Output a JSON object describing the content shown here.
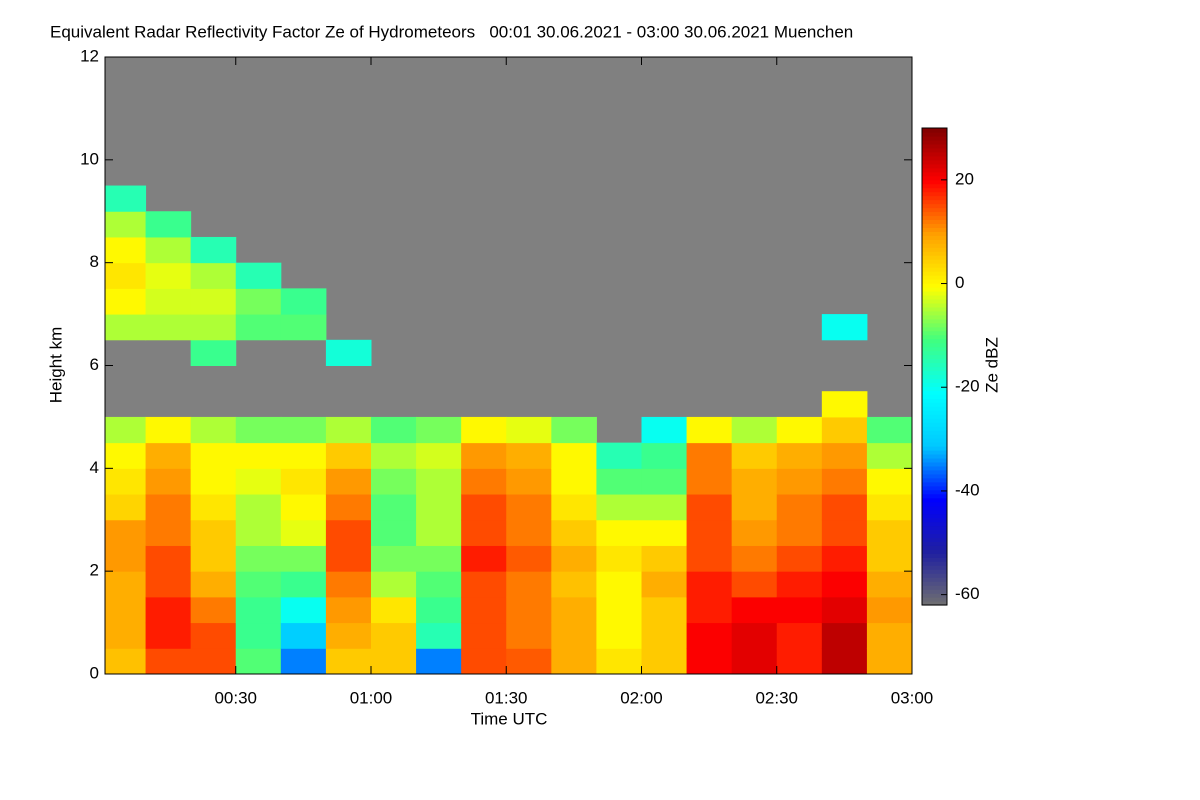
{
  "chart_data": {
    "type": "heatmap",
    "title": "Equivalent Radar Reflectivity Factor Ze of Hydrometeors   00:01 30.06.2021 - 03:00 30.06.2021 Muenchen",
    "x_label": "Time UTC",
    "y_label": "Height km",
    "colorbar_label": "Ze dBZ",
    "xlim": [
      1,
      180
    ],
    "xticks": [
      {
        "value": 30,
        "label": "00:30"
      },
      {
        "value": 60,
        "label": "01:00"
      },
      {
        "value": 90,
        "label": "01:30"
      },
      {
        "value": 120,
        "label": "02:00"
      },
      {
        "value": 150,
        "label": "02:30"
      },
      {
        "value": 180,
        "label": "03:00"
      }
    ],
    "ylim": [
      0,
      12
    ],
    "yticks": [
      0,
      2,
      4,
      6,
      8,
      10,
      12
    ],
    "clim": [
      -62,
      30
    ],
    "cticks": [
      -60,
      -40,
      -20,
      0,
      20
    ],
    "colormap": [
      "#707070",
      "#2020a0",
      "#0000ff",
      "#00c8ff",
      "#00ffff",
      "#40ff80",
      "#ffff00",
      "#ffa000",
      "#ff0000",
      "#800000"
    ],
    "background": "#808080",
    "x": [
      5,
      15,
      25,
      35,
      45,
      55,
      65,
      75,
      85,
      95,
      105,
      115,
      125,
      135,
      145,
      155,
      165,
      175
    ],
    "y": [
      0.25,
      0.75,
      1.25,
      1.75,
      2.25,
      2.75,
      3.25,
      3.75,
      4.25,
      4.75,
      5.25,
      5.75,
      6.25,
      6.75,
      7.25,
      7.75,
      8.25,
      8.75,
      9.25
    ],
    "z": [
      [
        6,
        8,
        8,
        8,
        10,
        10,
        4,
        2,
        0,
        -5,
        null,
        null,
        null,
        -5,
        0,
        2,
        0,
        -5,
        -15
      ],
      [
        15,
        18,
        18,
        15,
        15,
        12,
        12,
        10,
        8,
        0,
        null,
        null,
        null,
        -5,
        -3,
        -2,
        -5,
        -12,
        null
      ],
      [
        15,
        15,
        12,
        8,
        5,
        5,
        2,
        0,
        0,
        -5,
        null,
        null,
        -12,
        -5,
        -3,
        -5,
        -15,
        null,
        null
      ],
      [
        -10,
        -12,
        -12,
        -10,
        -8,
        -5,
        -5,
        -2,
        0,
        -8,
        null,
        null,
        null,
        -10,
        -8,
        -15,
        null,
        null,
        null
      ],
      [
        -35,
        -30,
        -20,
        -12,
        -8,
        -2,
        0,
        2,
        0,
        -8,
        null,
        null,
        null,
        -10,
        -12,
        null,
        null,
        null,
        null
      ],
      [
        5,
        8,
        10,
        12,
        15,
        15,
        12,
        10,
        5,
        -5,
        null,
        null,
        -18,
        null,
        null,
        null,
        null,
        null,
        null
      ],
      [
        5,
        5,
        2,
        -5,
        -8,
        -10,
        -10,
        -8,
        -5,
        -10,
        null,
        null,
        null,
        null,
        null,
        null,
        null,
        null,
        null
      ],
      [
        -35,
        -15,
        -12,
        -10,
        -8,
        -5,
        -5,
        -5,
        -3,
        -8,
        null,
        null,
        null,
        null,
        null,
        null,
        null,
        null,
        null
      ],
      [
        15,
        15,
        15,
        15,
        18,
        15,
        15,
        12,
        10,
        0,
        null,
        null,
        null,
        null,
        null,
        null,
        null,
        null,
        null
      ],
      [
        14,
        12,
        12,
        12,
        14,
        12,
        12,
        10,
        8,
        -2,
        null,
        null,
        null,
        null,
        null,
        null,
        null,
        null,
        null
      ],
      [
        8,
        8,
        8,
        6,
        8,
        5,
        2,
        0,
        0,
        -8,
        null,
        null,
        null,
        null,
        null,
        null,
        null,
        null,
        null
      ],
      [
        2,
        0,
        0,
        0,
        2,
        0,
        -5,
        -10,
        -15,
        null,
        null,
        null,
        null,
        null,
        null,
        null,
        null,
        null,
        null
      ],
      [
        5,
        5,
        5,
        8,
        5,
        0,
        -5,
        -10,
        -12,
        -20,
        null,
        null,
        null,
        null,
        null,
        null,
        null,
        null,
        null
      ],
      [
        20,
        20,
        18,
        18,
        15,
        15,
        15,
        12,
        12,
        0,
        null,
        null,
        null,
        null,
        null,
        null,
        null,
        null,
        null
      ],
      [
        22,
        22,
        20,
        15,
        12,
        10,
        8,
        8,
        5,
        -5,
        null,
        null,
        null,
        null,
        null,
        null,
        null,
        null,
        null
      ],
      [
        18,
        18,
        20,
        18,
        15,
        12,
        12,
        10,
        8,
        0,
        null,
        null,
        null,
        null,
        null,
        null,
        null,
        null,
        null
      ],
      [
        25,
        25,
        22,
        20,
        18,
        15,
        15,
        12,
        10,
        5,
        0,
        null,
        null,
        -20,
        null,
        null,
        null,
        null,
        null
      ],
      [
        8,
        8,
        10,
        8,
        5,
        5,
        2,
        0,
        -5,
        -10,
        null,
        null,
        null,
        null,
        null,
        null,
        null,
        null,
        null
      ]
    ]
  }
}
